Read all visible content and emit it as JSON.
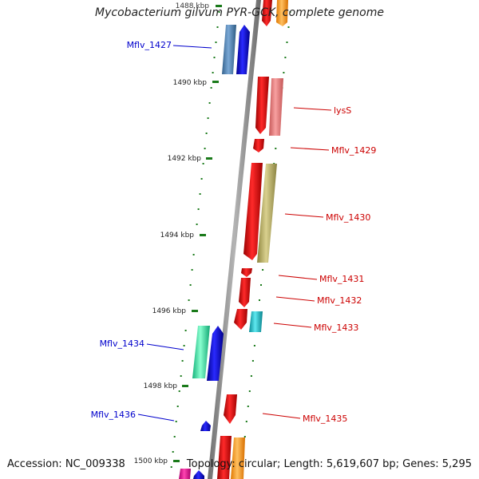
{
  "title": "Mycobacterium gilvum PYR-GCK, complete genome",
  "accession": "Accession: NC_009338",
  "topology": "Topology: circular; Length: 5,619,607 bp; Genes: 5,295",
  "ticks": [
    {
      "label": "1488 kbp"
    },
    {
      "label": "1490 kbp"
    },
    {
      "label": "1492 kbp"
    },
    {
      "label": "1494 kbp"
    },
    {
      "label": "1496 kbp"
    },
    {
      "label": "1498 kbp"
    },
    {
      "label": "1500 kbp"
    }
  ],
  "genes_left": [
    {
      "name": "Mflv_1427",
      "color": "#0000cc"
    },
    {
      "name": "Mflv_1434",
      "color": "#0000cc"
    },
    {
      "name": "Mflv_1436",
      "color": "#0000cc"
    }
  ],
  "genes_right": [
    {
      "name": "lysS",
      "color": "#cc0000"
    },
    {
      "name": "Mflv_1429",
      "color": "#cc0000"
    },
    {
      "name": "Mflv_1430",
      "color": "#cc0000"
    },
    {
      "name": "Mflv_1431",
      "color": "#cc0000"
    },
    {
      "name": "Mflv_1432",
      "color": "#cc0000"
    },
    {
      "name": "Mflv_1433",
      "color": "#cc0000"
    },
    {
      "name": "Mflv_1435",
      "color": "#cc0000"
    }
  ],
  "colors": {
    "forward_gene": "#0000ee",
    "reverse_gene": "#ee0000",
    "backbone": "#8a8a8a",
    "tick": "#1a7a1a"
  }
}
